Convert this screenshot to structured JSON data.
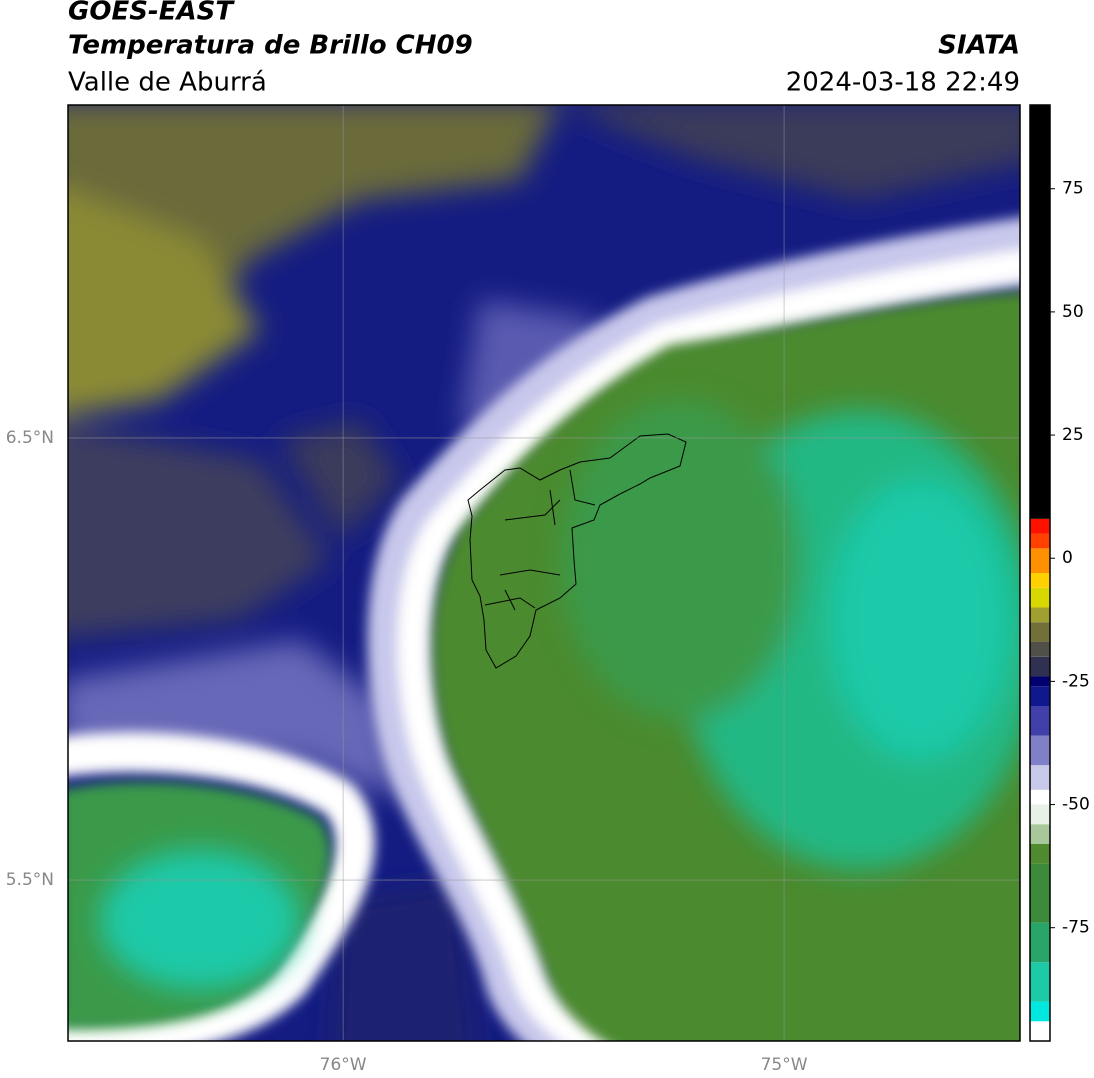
{
  "map": {
    "title": "GOES-EAST",
    "subtitle": "Temperatura de Brillo CH09",
    "region": "Valle de Aburrá",
    "source": "SIATA",
    "datetime": "2024-03-18 22:49",
    "xlim": [
      -76.624,
      -74.465
    ],
    "ylim": [
      5.136,
      7.253
    ],
    "xticks": [
      {
        "value": -76,
        "label": "76°W"
      },
      {
        "value": -75,
        "label": "75°W"
      }
    ],
    "yticks": [
      {
        "value": 6.5,
        "label": "6.5°N"
      },
      {
        "value": 5.5,
        "label": "5.5°N"
      }
    ],
    "grid": true,
    "colorbar": {
      "lim": [
        -98,
        92
      ],
      "ticks": [
        75,
        50,
        25,
        0,
        -25,
        -50,
        -75
      ],
      "colormap": [
        {
          "value": -98,
          "color": "#ffffff"
        },
        {
          "value": -94,
          "color": "#00e8e0"
        },
        {
          "value": -90,
          "color": "#1ec9a8"
        },
        {
          "value": -82,
          "color": "#2aa56a"
        },
        {
          "value": -74,
          "color": "#3a8a3a"
        },
        {
          "value": -62,
          "color": "#4f8a2e"
        },
        {
          "value": -58,
          "color": "#a8c79a"
        },
        {
          "value": -54,
          "color": "#e8f0e8"
        },
        {
          "value": -50,
          "color": "#ffffff"
        },
        {
          "value": -47,
          "color": "#c8c8e8"
        },
        {
          "value": -42,
          "color": "#8080c8"
        },
        {
          "value": -36,
          "color": "#4040a8"
        },
        {
          "value": -30,
          "color": "#101890"
        },
        {
          "value": -26,
          "color": "#000070"
        },
        {
          "value": -24,
          "color": "#303050"
        },
        {
          "value": -20,
          "color": "#505048"
        },
        {
          "value": -17,
          "color": "#707038"
        },
        {
          "value": -13,
          "color": "#a0a030"
        },
        {
          "value": -10,
          "color": "#d8d800"
        },
        {
          "value": -6,
          "color": "#ffd000"
        },
        {
          "value": -3,
          "color": "#ff9000"
        },
        {
          "value": 2,
          "color": "#ff4000"
        },
        {
          "value": 5,
          "color": "#ff1000"
        },
        {
          "value": 8,
          "color": "#000000"
        }
      ]
    }
  }
}
